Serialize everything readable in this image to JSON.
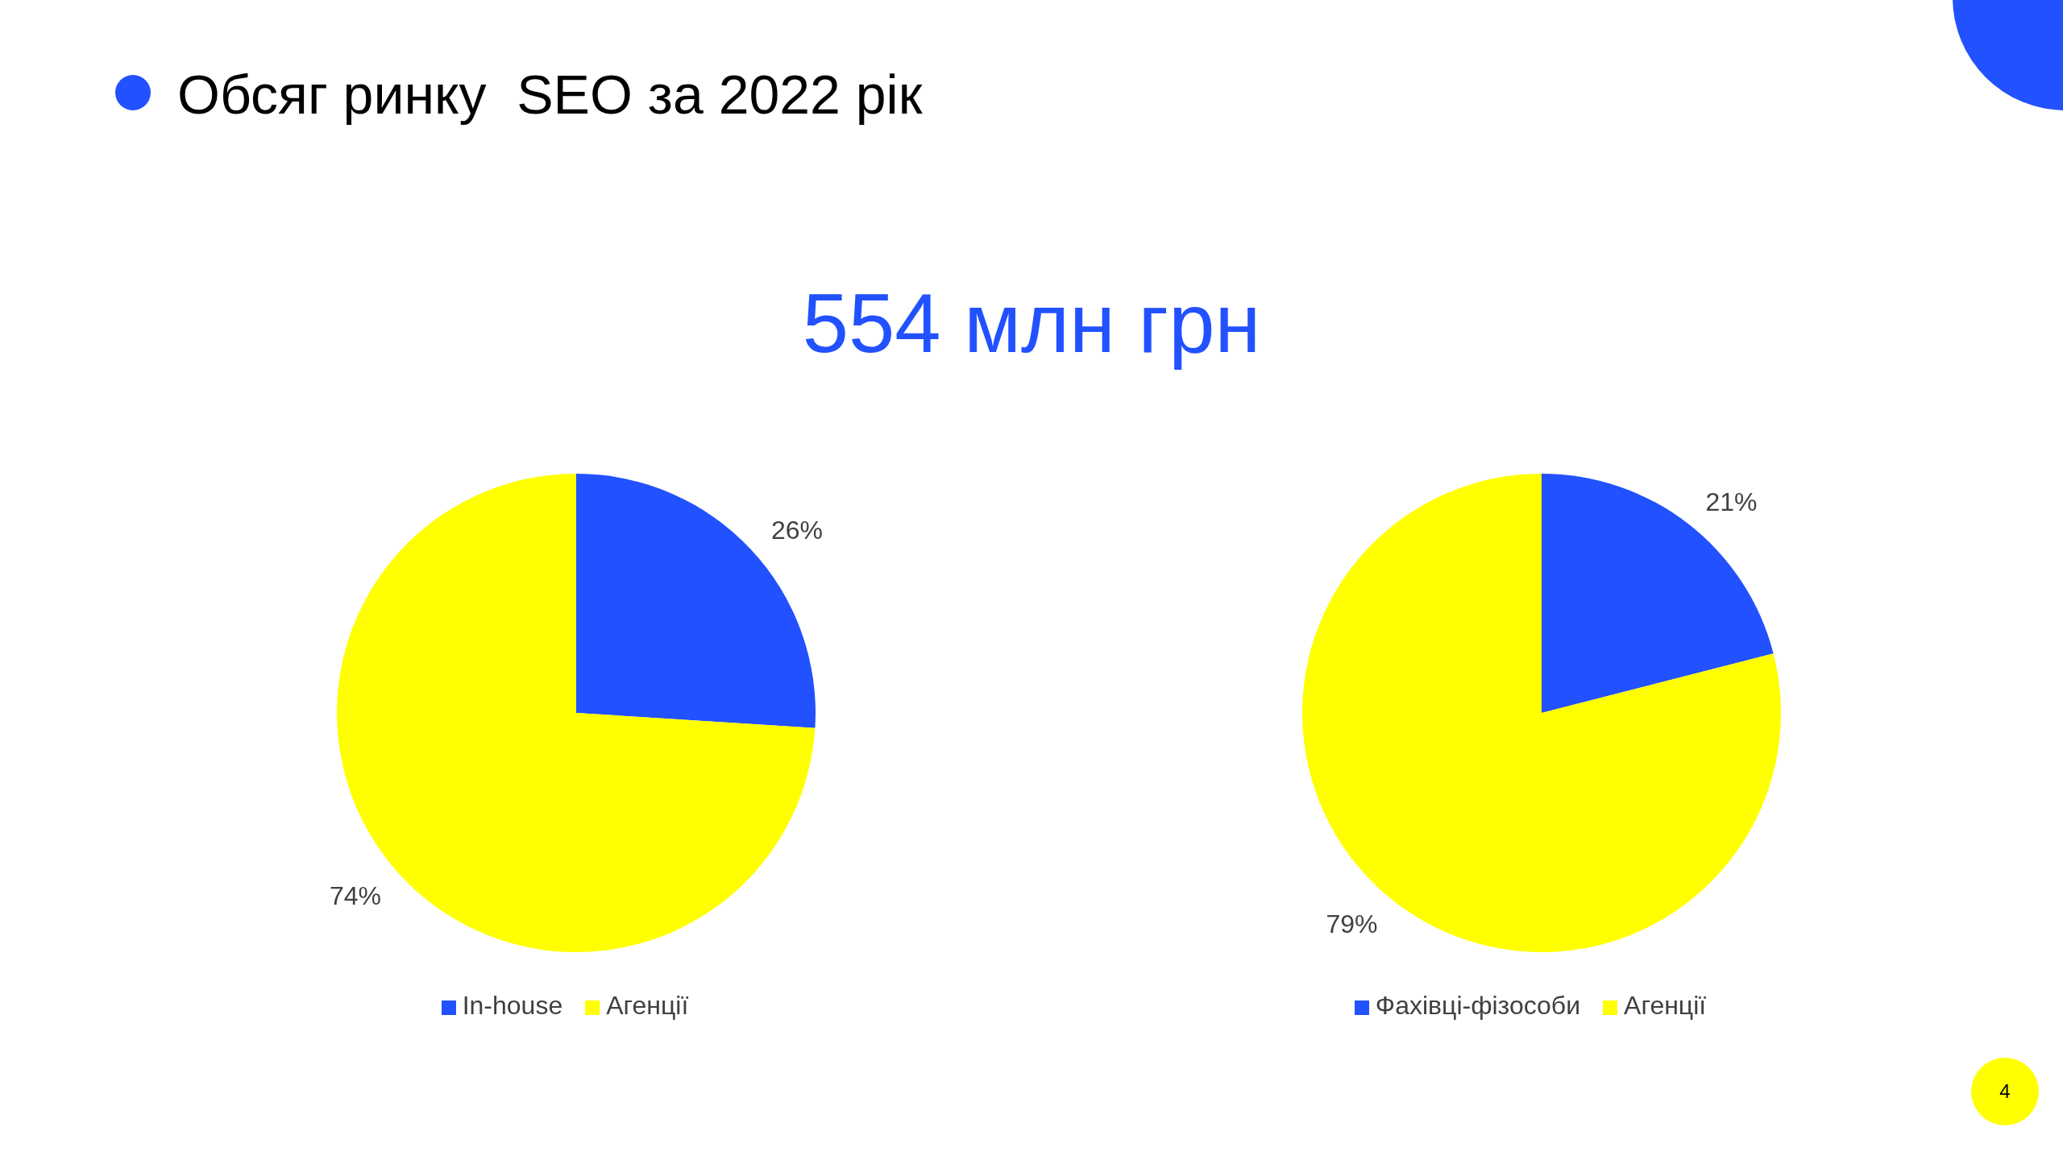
{
  "chart_data": [
    {
      "type": "pie",
      "title": "Обсяг ринку  SEO за 2022 рік",
      "subtitle": "554 млн грн",
      "categories": [
        "In-house",
        "Агенції"
      ],
      "values": [
        26,
        74
      ],
      "colors": [
        "#2251ff",
        "#ffff00"
      ],
      "value_labels": [
        "26%",
        "74%"
      ],
      "legend": "bottom"
    },
    {
      "type": "pie",
      "categories": [
        "Фахівці-фізособи",
        "Агенції"
      ],
      "values": [
        21,
        79
      ],
      "colors": [
        "#2251ff",
        "#ffff00"
      ],
      "value_labels": [
        "21%",
        "79%"
      ],
      "legend": "bottom",
      "annotations": [
        "4"
      ]
    }
  ]
}
